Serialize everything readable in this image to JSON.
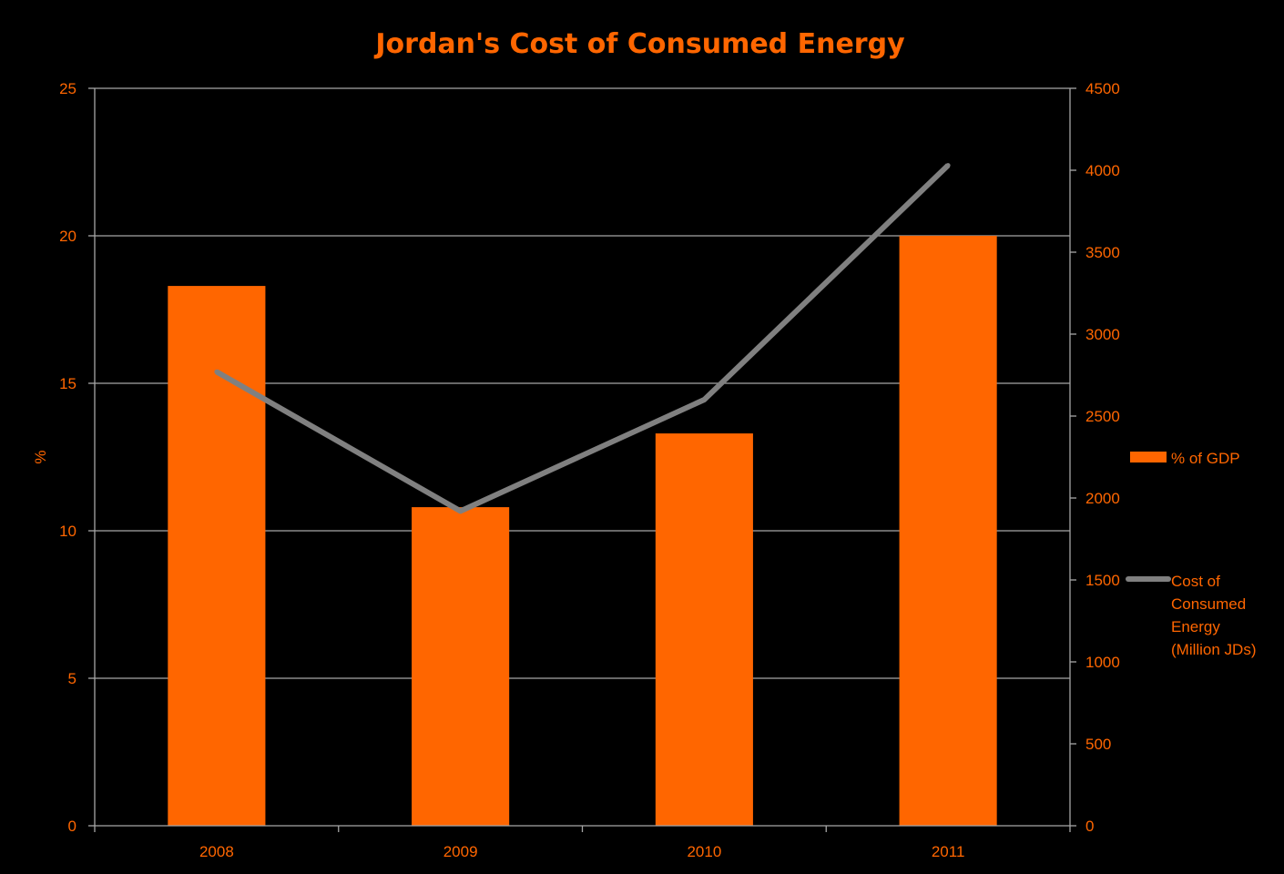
{
  "colors": {
    "background": "#000000",
    "text": "#ff6600",
    "bar": "#ff6600",
    "line": "#808080",
    "grid": "#a6a6a6",
    "axis": "#a6a6a6"
  },
  "chart_data": {
    "type": "bar",
    "title": "Jordan's Cost of Consumed Energy",
    "categories": [
      "2008",
      "2009",
      "2010",
      "2011"
    ],
    "ylabel": "%",
    "ylabel_right": "",
    "xlabel": "",
    "ylim": [
      0,
      25
    ],
    "y_ticks": [
      0,
      5,
      10,
      15,
      20,
      25
    ],
    "ylim_right": [
      0,
      4500
    ],
    "y_ticks_right": [
      0,
      500,
      1000,
      1500,
      2000,
      2500,
      3000,
      3500,
      4000,
      4500
    ],
    "grid": true,
    "legend_position": "right",
    "series": [
      {
        "name": "% of GDP",
        "type": "bar",
        "axis": "left",
        "values": [
          18.3,
          10.8,
          13.3,
          20.0
        ]
      },
      {
        "name": "Cost of Consumed Energy (Million JDs)",
        "legend_lines": [
          "Cost of",
          "Consumed",
          "Energy",
          "(Million JDs)"
        ],
        "type": "line",
        "axis": "right",
        "values": [
          2770,
          1920,
          2600,
          4030
        ]
      }
    ]
  }
}
